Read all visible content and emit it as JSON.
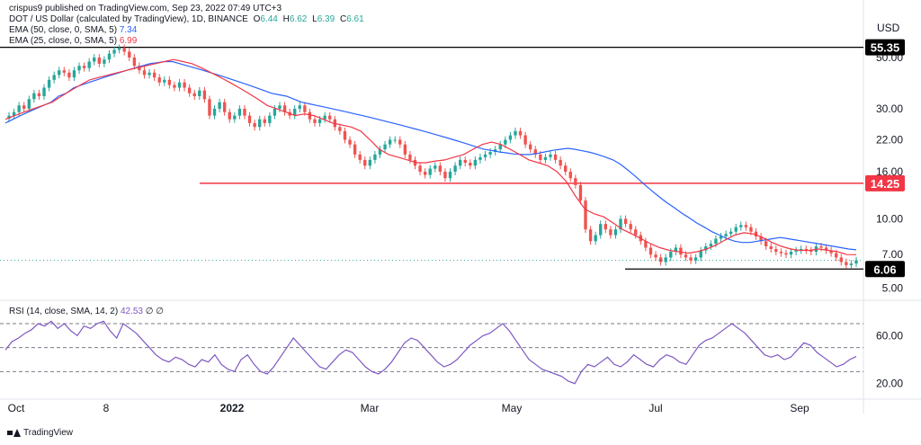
{
  "publisher_line": "crispus9 published on TradingView.com, Sep 23, 2022 07:49 UTC+3",
  "symbol_line": {
    "title": "DOT / US Dollar (calculated by TradingView), 1D, BINANCE",
    "o_label": "O",
    "o": "6.44",
    "h_label": "H",
    "h": "6.62",
    "l_label": "L",
    "l": "6.39",
    "c_label": "C",
    "c": "6.61"
  },
  "ema50": {
    "label": "EMA (50, close, 0, SMA, 5)",
    "value": "7.34",
    "color": "#2962ff"
  },
  "ema25": {
    "label": "EMA (25, close, 0, SMA, 5)",
    "value": "6.99",
    "color": "#f23645"
  },
  "rsi_header": {
    "label": "RSI (14, close, SMA, 14, 2)",
    "value": "42.53",
    "extra": "∅ ∅"
  },
  "currency": "USD",
  "footer_brand": "TradingView",
  "colors": {
    "up": "#26a69a",
    "down": "#ef5350",
    "ema50": "#2962ff",
    "ema25": "#f23645",
    "rsi": "#7e57c2",
    "support": "#f23645",
    "level": "#000000",
    "last_price_line": "#26a69a"
  },
  "chart_data": {
    "type": "candlestick",
    "log_scale": true,
    "ylim": [
      4.6,
      62
    ],
    "y_ticks": [
      "50.00",
      "30.00",
      "22.00",
      "16.00",
      "10.00",
      "7.00",
      "5.00"
    ],
    "x_ticks": [
      "Oct",
      "8",
      "2022",
      "Mar",
      "May",
      "Jul",
      "Sep"
    ],
    "levels": [
      {
        "value": 55.35,
        "label": "55.35",
        "style": "black"
      },
      {
        "value": 14.25,
        "label": "14.25",
        "style": "red"
      },
      {
        "value": 6.06,
        "label": "6.06",
        "style": "black"
      }
    ],
    "price_series_close": [
      28,
      29,
      31,
      30,
      33,
      35,
      34,
      37,
      40,
      42,
      44,
      43,
      41,
      44,
      46,
      45,
      48,
      50,
      47,
      49,
      52,
      54,
      55,
      53,
      50,
      46,
      44,
      42,
      43,
      41,
      39,
      40,
      38,
      37,
      39,
      37,
      35,
      34,
      36,
      33,
      28,
      30,
      32,
      29,
      27,
      28,
      30,
      28,
      26,
      25,
      27,
      26,
      28,
      30,
      31,
      29,
      28,
      30,
      31,
      29,
      27,
      26,
      27,
      28,
      27,
      25,
      24,
      22,
      21,
      19,
      18,
      17,
      18,
      19,
      20,
      21,
      22,
      22,
      21,
      19,
      18,
      17,
      16,
      15.5,
      16.5,
      17,
      16,
      15,
      16,
      17,
      18,
      17.5,
      17,
      18,
      18.5,
      19,
      19.5,
      20,
      21,
      22,
      23,
      24,
      23,
      21,
      20,
      19,
      18,
      18.5,
      19,
      18,
      17,
      16,
      15,
      14,
      12,
      9,
      8,
      8.5,
      9.5,
      9,
      8.5,
      9,
      10,
      9.5,
      9,
      8.5,
      8,
      7.5,
      7,
      6.8,
      6.5,
      6.8,
      7.2,
      7.5,
      7,
      6.8,
      6.6,
      6.8,
      7.3,
      7.6,
      7.8,
      8.2,
      8.4,
      8.6,
      8.8,
      9.2,
      9.4,
      9.2,
      8.8,
      8.4,
      8,
      7.6,
      7.4,
      7.2,
      7.1,
      7,
      7.2,
      7.3,
      7.4,
      7.3,
      7.2,
      7.6,
      7.5,
      7.3,
      7.1,
      6.8,
      6.5,
      6.3,
      6.4,
      6.61
    ],
    "ema50_values": [
      26,
      27,
      28,
      29,
      30,
      31,
      32,
      34,
      35,
      37,
      38,
      39,
      40,
      41,
      42,
      43,
      44,
      45,
      46,
      47,
      47.5,
      48,
      48,
      47,
      46,
      45,
      44,
      43,
      42,
      41,
      40,
      39,
      38,
      37,
      36,
      35,
      34.5,
      34,
      33,
      32,
      31.5,
      31,
      30.5,
      30,
      29.5,
      29,
      28.5,
      28,
      27.5,
      27,
      26.5,
      26,
      25.5,
      25,
      24.5,
      24,
      23.5,
      23,
      22.5,
      22,
      21.5,
      21,
      20.5,
      20,
      19.8,
      19.5,
      19.3,
      19.1,
      19,
      19,
      19.2,
      19.5,
      19.8,
      20,
      20.2,
      20,
      19.7,
      19.4,
      19,
      18.5,
      18,
      17.2,
      16.2,
      15.2,
      14.2,
      13.3,
      12.5,
      11.8,
      11.2,
      10.6,
      10.1,
      9.6,
      9.2,
      8.8,
      8.5,
      8.2,
      8,
      7.9,
      7.9,
      8,
      8.1,
      8.2,
      8.3,
      8.2,
      8.1,
      8,
      7.9,
      7.8,
      7.7,
      7.6,
      7.5,
      7.4,
      7.34
    ],
    "ema25_values": [
      27,
      28,
      29,
      30,
      31,
      32,
      34,
      36,
      38,
      40,
      41,
      42,
      43,
      44,
      45,
      46,
      47,
      48,
      49,
      48,
      47,
      45,
      43,
      41,
      39,
      37,
      35,
      33,
      31,
      30,
      29,
      28,
      28.5,
      28,
      27,
      26,
      25.5,
      25,
      24,
      22,
      20,
      19,
      18.5,
      18,
      17.5,
      17.5,
      17.8,
      18,
      18.5,
      19,
      20,
      21,
      21.5,
      21,
      20,
      19,
      18,
      17.5,
      17,
      16,
      14.5,
      12.5,
      11,
      10.5,
      10.2,
      9.6,
      9,
      8.6,
      8.2,
      7.8,
      7.5,
      7.3,
      7.2,
      7.1,
      7.2,
      7.4,
      7.7,
      8.1,
      8.5,
      8.7,
      8.6,
      8.3,
      7.9,
      7.6,
      7.4,
      7.3,
      7.3,
      7.4,
      7.3,
      7.2,
      7,
      6.99
    ],
    "rsi": {
      "ylim": [
        10,
        85
      ],
      "y_ticks": [
        "60.00",
        "20.00"
      ],
      "bands": [
        70,
        50,
        30
      ],
      "values": [
        48,
        55,
        58,
        62,
        65,
        70,
        68,
        72,
        66,
        70,
        64,
        60,
        68,
        66,
        70,
        72,
        64,
        58,
        70,
        66,
        62,
        56,
        50,
        44,
        40,
        38,
        42,
        40,
        36,
        34,
        40,
        38,
        44,
        36,
        32,
        30,
        40,
        44,
        36,
        30,
        28,
        34,
        42,
        50,
        58,
        52,
        46,
        40,
        34,
        32,
        38,
        44,
        48,
        46,
        40,
        34,
        30,
        28,
        32,
        38,
        46,
        54,
        58,
        56,
        50,
        44,
        38,
        34,
        36,
        40,
        46,
        52,
        56,
        60,
        62,
        66,
        70,
        64,
        56,
        48,
        40,
        36,
        32,
        30,
        28,
        26,
        22,
        20,
        30,
        36,
        34,
        38,
        42,
        36,
        34,
        38,
        44,
        40,
        36,
        34,
        40,
        44,
        42,
        38,
        36,
        44,
        52,
        56,
        58,
        62,
        66,
        70,
        66,
        62,
        56,
        50,
        44,
        42,
        44,
        40,
        42,
        48,
        54,
        52,
        46,
        42,
        38,
        34,
        36,
        40,
        42.53
      ]
    }
  }
}
